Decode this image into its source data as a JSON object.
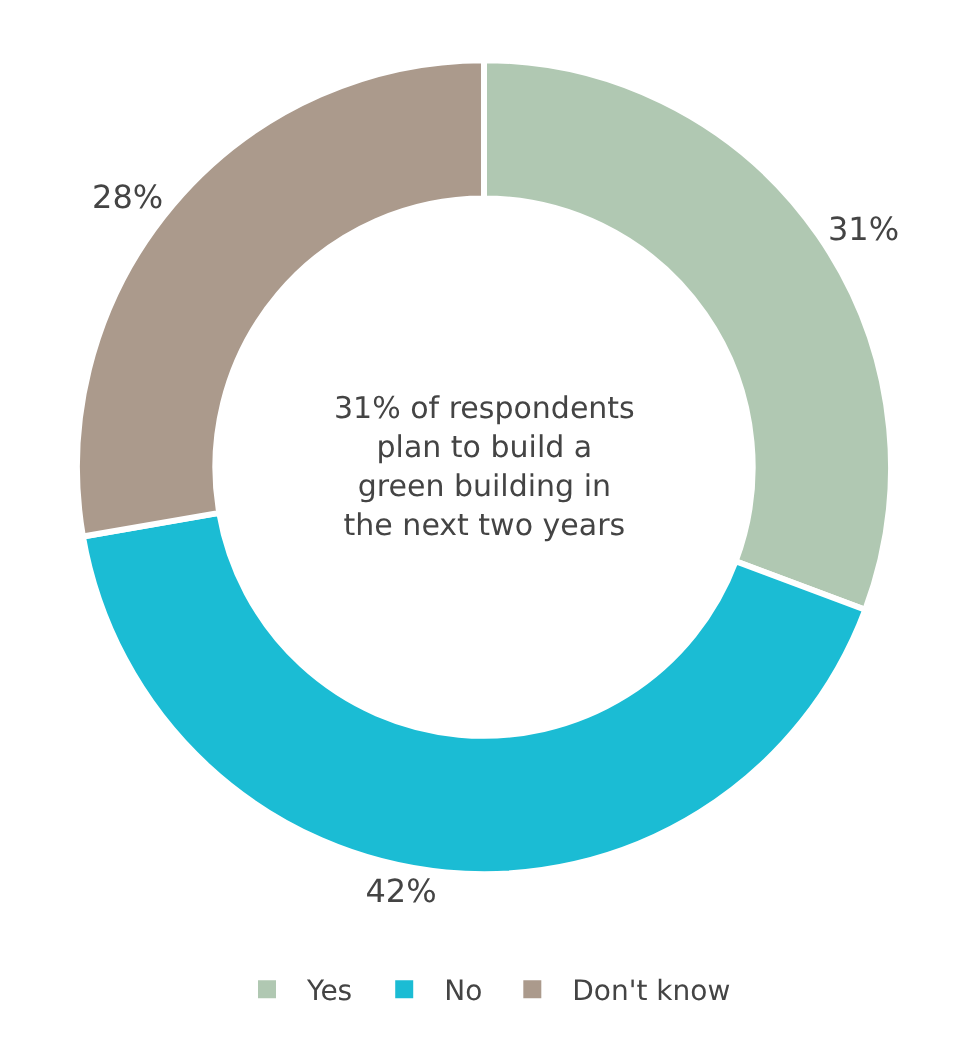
{
  "chart_data": {
    "type": "donut",
    "categories": [
      "Yes",
      "No",
      "Don't know"
    ],
    "values": [
      31,
      42,
      28
    ],
    "colors": [
      "#b0c8b2",
      "#1bbcd4",
      "#ab9a8c"
    ],
    "value_labels": [
      "31%",
      "42%",
      "28%"
    ],
    "annotations": [
      "31% of respondents plan to build a green building in the next two years"
    ],
    "legend": "bottom"
  }
}
